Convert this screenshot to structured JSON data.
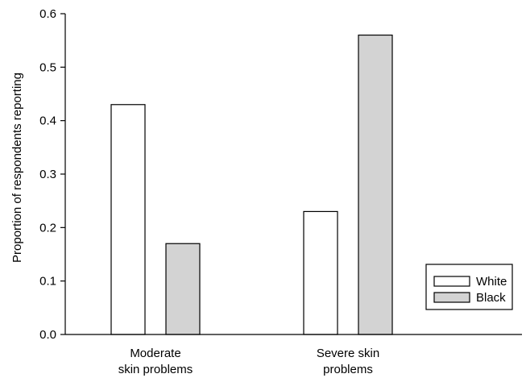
{
  "chart_data": {
    "type": "bar",
    "title": "",
    "xlabel": "",
    "ylabel": "Proportion of respondents reporting",
    "ylim": [
      0,
      0.6
    ],
    "yticks": [
      "0.0",
      "0.1",
      "0.2",
      "0.3",
      "0.4",
      "0.5",
      "0.6"
    ],
    "categories": [
      [
        "Moderate",
        "skin problems"
      ],
      [
        "Severe skin",
        "problems"
      ]
    ],
    "series": [
      {
        "name": "White",
        "values": [
          0.43,
          0.23
        ],
        "color": "#ffffff"
      },
      {
        "name": "Black",
        "values": [
          0.17,
          0.56
        ],
        "color": "#d3d3d3"
      }
    ],
    "grid": false,
    "legend_position": "bottom-right"
  }
}
